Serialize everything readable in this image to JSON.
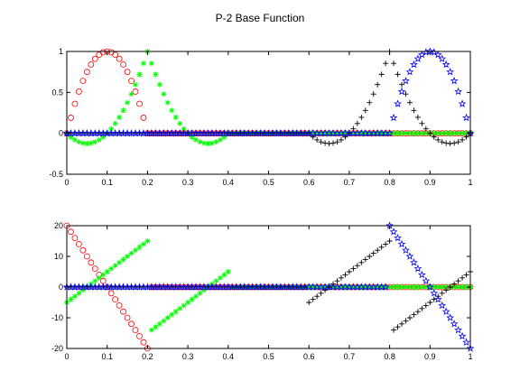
{
  "figure": {
    "title": "P-2 Base Function"
  },
  "chart_data": [
    {
      "type": "scatter",
      "panel": "top",
      "title": "P-2 Base Function",
      "xlabel": "",
      "ylabel": "",
      "xlim": [
        0,
        1
      ],
      "ylim": [
        -0.5,
        1
      ],
      "xticks": [
        "0",
        "0.1",
        "0.2",
        "0.3",
        "0.4",
        "0.5",
        "0.6",
        "0.7",
        "0.8",
        "0.9",
        "1"
      ],
      "yticks": [
        "-0.5",
        "0",
        "0.5",
        "1"
      ],
      "grid": false,
      "series": [
        {
          "color": "#ff0000",
          "marker": "circle",
          "function": "quadratic-center",
          "nodes": [
            0,
            0.1,
            0.2
          ]
        },
        {
          "color": "#00ff00",
          "marker": "asterisk",
          "function": "quadratic-end",
          "nodes": [
            0.2,
            0.1,
            0,
            0.3,
            0.4
          ]
        },
        {
          "color": "#000000",
          "marker": "plus",
          "function": "quadratic-end",
          "nodes": [
            0.8,
            0.7,
            0.6,
            0.9,
            1.0
          ]
        },
        {
          "color": "#0000ff",
          "marker": "pentagram",
          "function": "quadratic-center",
          "nodes": [
            0.8,
            0.9,
            1.0
          ]
        }
      ]
    },
    {
      "type": "scatter",
      "panel": "bottom",
      "title": "",
      "xlabel": "",
      "ylabel": "",
      "xlim": [
        0,
        1
      ],
      "ylim": [
        -20,
        20
      ],
      "xticks": [
        "0",
        "0.1",
        "0.2",
        "0.3",
        "0.4",
        "0.5",
        "0.6",
        "0.7",
        "0.8",
        "0.9",
        "1"
      ],
      "yticks": [
        "-20",
        "-10",
        "0",
        "10",
        "20"
      ],
      "grid": false,
      "series": [
        {
          "color": "#ff0000",
          "marker": "circle",
          "function": "derivative-center",
          "nodes": [
            0,
            0.1,
            0.2
          ]
        },
        {
          "color": "#00ff00",
          "marker": "asterisk",
          "function": "derivative-end",
          "nodes": [
            0.2,
            0.1,
            0,
            0.3,
            0.4
          ]
        },
        {
          "color": "#000000",
          "marker": "plus",
          "function": "derivative-end",
          "nodes": [
            0.8,
            0.7,
            0.6,
            0.9,
            1.0
          ]
        },
        {
          "color": "#0000ff",
          "marker": "pentagram",
          "function": "derivative-center",
          "nodes": [
            0.8,
            0.9,
            1.0
          ]
        }
      ]
    }
  ]
}
